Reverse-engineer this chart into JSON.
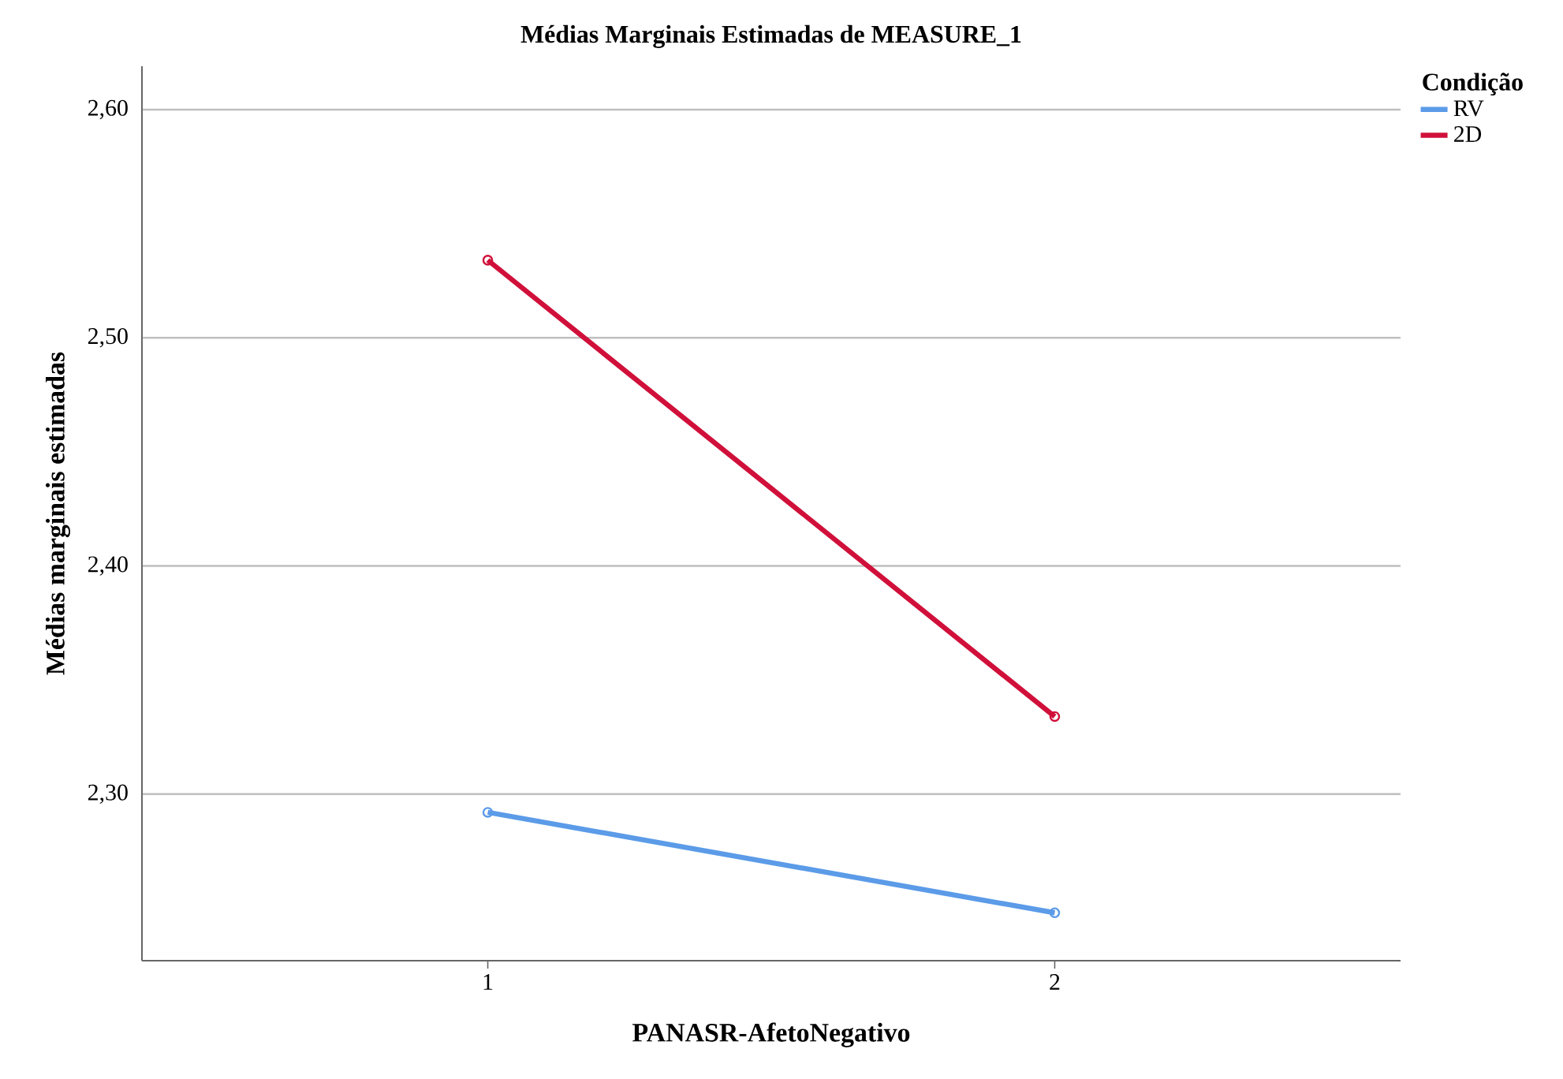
{
  "chart_data": {
    "type": "line",
    "title": "Médias Marginais Estimadas de MEASURE_1",
    "xlabel": "PANASR-AfetoNegativo",
    "ylabel": "Médias marginais estimadas",
    "legend_title": "Condição",
    "categories": [
      "1",
      "2"
    ],
    "series": [
      {
        "name": "RV",
        "color": "#5b9be8",
        "values": [
          2.292,
          2.248
        ]
      },
      {
        "name": "2D",
        "color": "#d0103a",
        "values": [
          2.534,
          2.334
        ]
      }
    ],
    "ylim": [
      2.227,
      2.619
    ],
    "yticks": [
      {
        "value": 2.3,
        "label": "2,30"
      },
      {
        "value": 2.4,
        "label": "2,40"
      },
      {
        "value": 2.5,
        "label": "2,50"
      },
      {
        "value": 2.6,
        "label": "2,60"
      }
    ],
    "grid": "y",
    "legend": "right",
    "marker": "circle",
    "line_style": "solid"
  }
}
